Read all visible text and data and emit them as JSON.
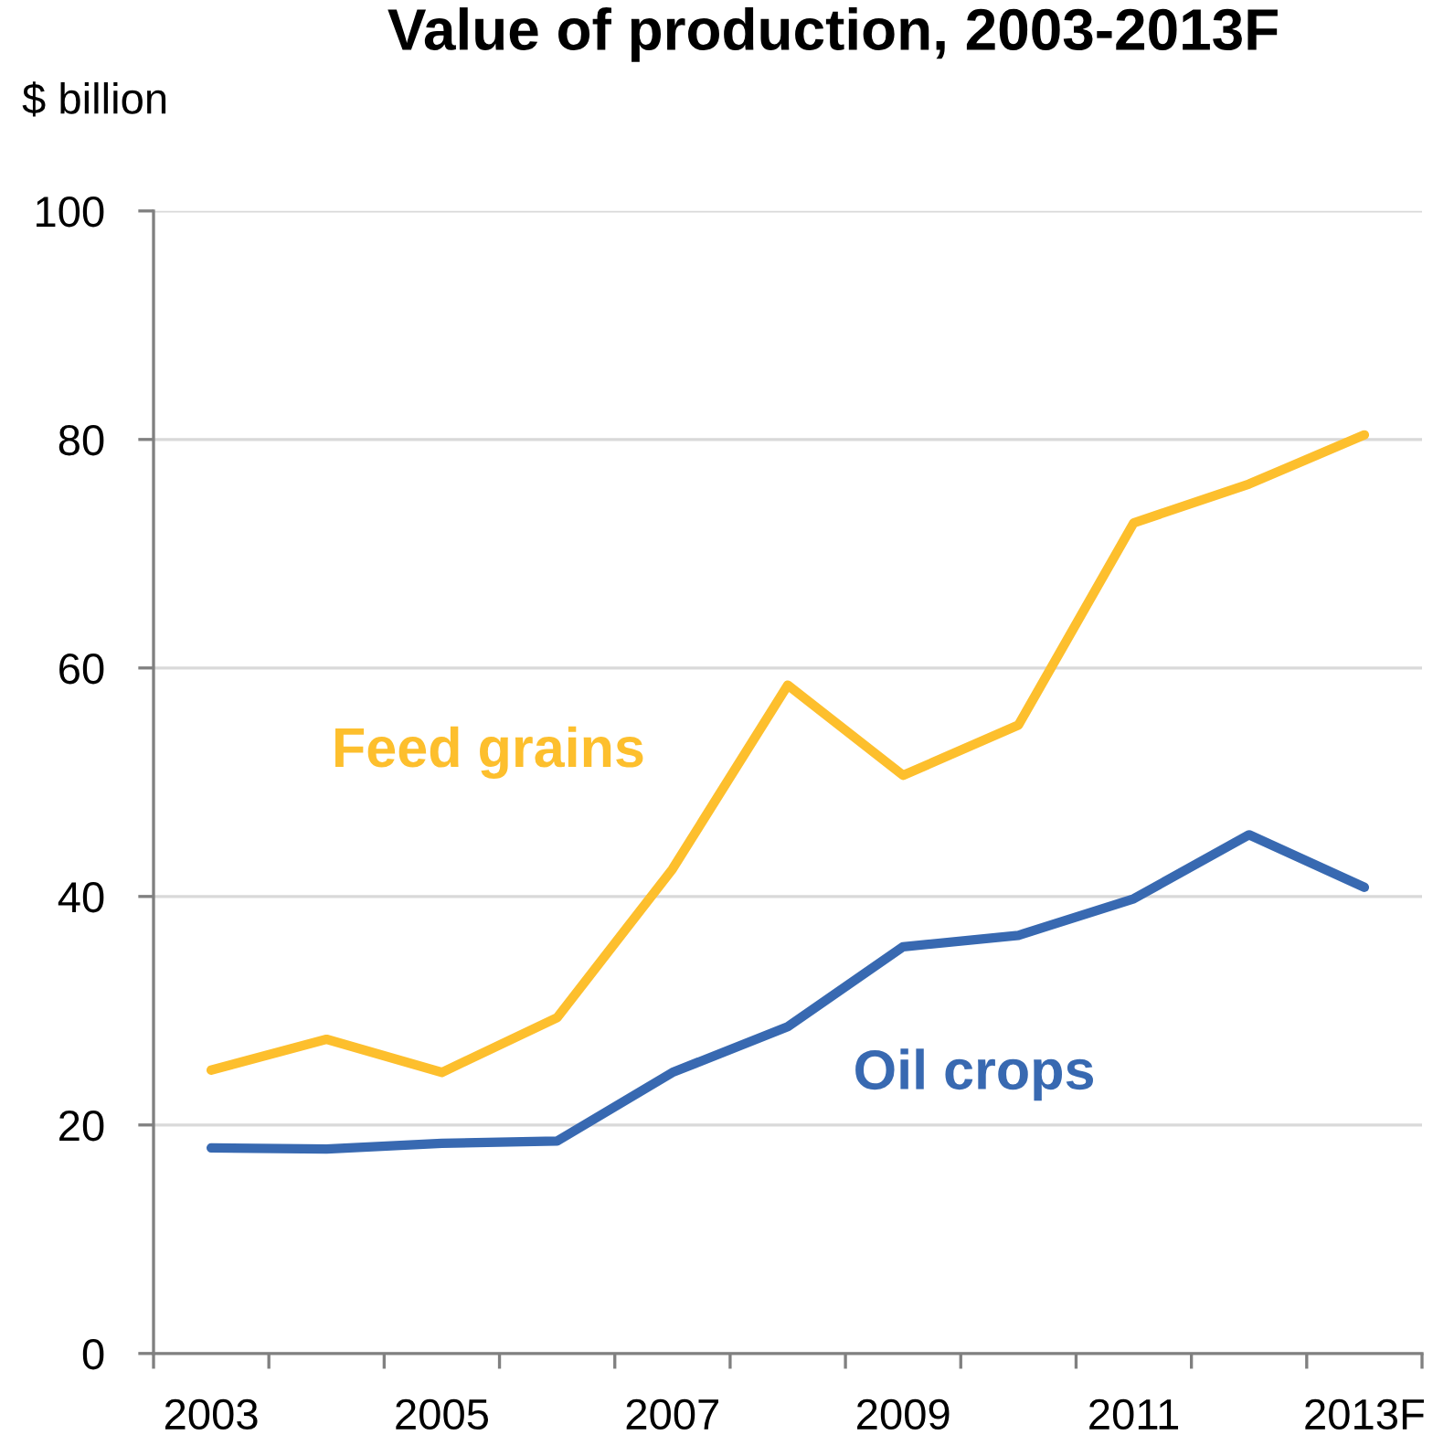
{
  "chart_data": {
    "type": "line",
    "title": "Value of production, 2003-2013F",
    "ylabel": "$ billion",
    "categories": [
      "2003",
      null,
      "2005",
      null,
      "2007",
      null,
      "2009",
      null,
      "2011",
      null,
      "2013F"
    ],
    "series": [
      {
        "name": "Feed grains",
        "color": "#fdbf2d",
        "values": [
          24.8,
          27.5,
          24.6,
          29.4,
          42.4,
          58.5,
          50.6,
          55.0,
          72.7,
          76.1,
          80.4
        ]
      },
      {
        "name": "Oil crops",
        "color": "#3869b1",
        "values": [
          18.0,
          17.9,
          18.4,
          18.6,
          24.6,
          28.6,
          35.6,
          36.6,
          39.8,
          45.4,
          40.8
        ]
      }
    ],
    "ylim": [
      0,
      100
    ],
    "yticks": [
      0,
      20,
      40,
      60,
      80,
      100
    ],
    "grid": "y",
    "legend": false,
    "marker": "none",
    "line_style": "solid"
  }
}
